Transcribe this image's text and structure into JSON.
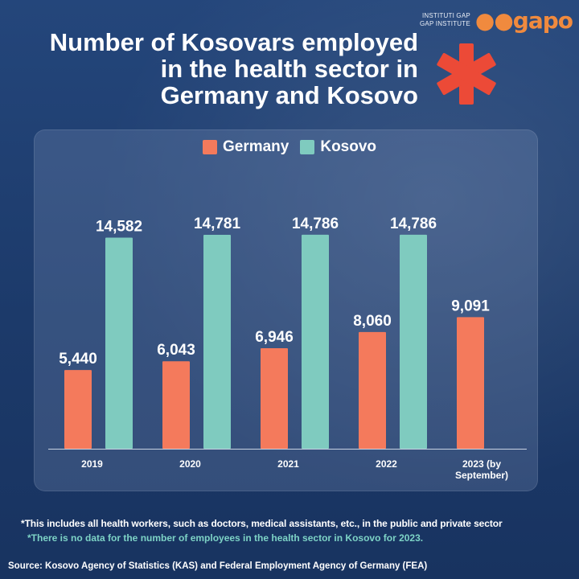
{
  "logo": {
    "line1": "INSTITUTI GAP",
    "line2": "GAP INSTITUTE",
    "mark": "gapo"
  },
  "title_lines": [
    "Number of Kosovars employed",
    "in the health sector in",
    "Germany and Kosovo"
  ],
  "colors": {
    "germany": "#f47a5c",
    "kosovo": "#7fcbbf",
    "asterisk": "#ec4a37"
  },
  "footnotes": {
    "note1": "*This includes all health workers, such as doctors, medical assistants, etc., in the public and private sector",
    "note2": "*There is no data for the number of employees in the health sector in Kosovo for 2023.",
    "source": "Source: Kosovo Agency of Statistics (KAS) and Federal Employment Agency of Germany (FEA)"
  },
  "chart_data": {
    "type": "bar",
    "categories": [
      [
        "2019"
      ],
      [
        "2020"
      ],
      [
        "2021"
      ],
      [
        "2022"
      ],
      [
        "2023 (by",
        "September)"
      ]
    ],
    "series": [
      {
        "name": "Germany",
        "values": [
          5440,
          6043,
          6946,
          8060,
          9091
        ],
        "labels": [
          "5,440",
          "6,043",
          "6,946",
          "8,060",
          "9,091"
        ]
      },
      {
        "name": "Kosovo",
        "values": [
          14582,
          14781,
          14786,
          14786,
          null
        ],
        "labels": [
          "14,582",
          "14,781",
          "14,786",
          "14,786",
          ""
        ]
      }
    ],
    "ylim": [
      0,
      16000
    ],
    "grid": false,
    "legend": "top-center"
  }
}
